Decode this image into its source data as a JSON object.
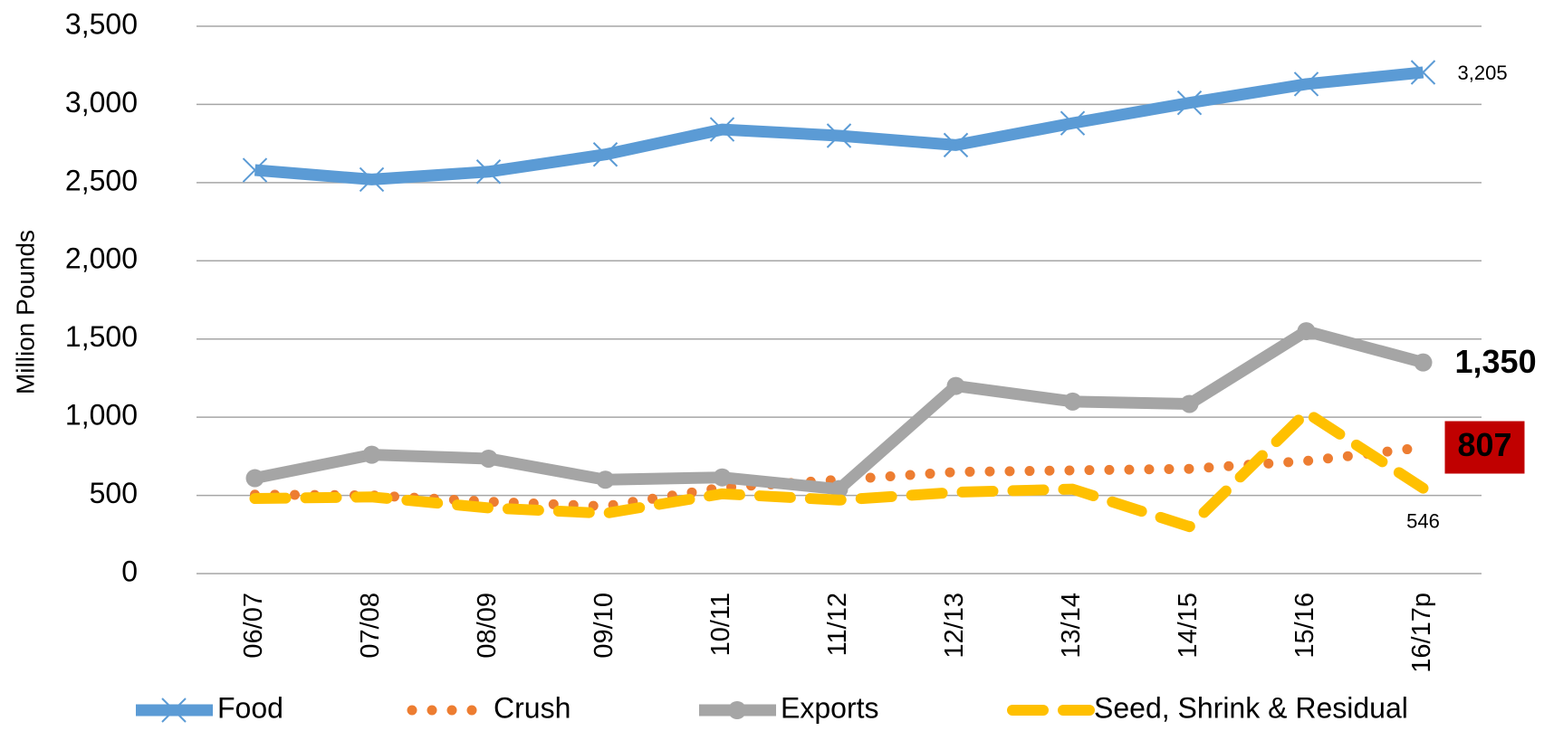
{
  "chart_data": {
    "type": "line",
    "y_axis_label": "Million Pounds",
    "categories": [
      "06/07",
      "07/08",
      "08/09",
      "09/10",
      "10/11",
      "11/12",
      "12/13",
      "13/14",
      "14/15",
      "15/16",
      "16/17p"
    ],
    "series": [
      {
        "name": "Food",
        "color": "#5b9bd5",
        "line_style": "solid",
        "marker": "x",
        "values": [
          2580,
          2520,
          2570,
          2680,
          2840,
          2800,
          2740,
          2880,
          3010,
          3130,
          3205
        ],
        "value_labels": [
          null,
          null,
          null,
          null,
          null,
          null,
          null,
          null,
          null,
          null,
          "3,205"
        ]
      },
      {
        "name": "Crush",
        "color": "#ed7d31",
        "line_style": "dotted",
        "marker": "none",
        "values": [
          505,
          500,
          460,
          430,
          550,
          600,
          650,
          660,
          670,
          720,
          807
        ],
        "value_labels": [
          null,
          null,
          null,
          null,
          null,
          null,
          null,
          null,
          null,
          null,
          "807"
        ]
      },
      {
        "name": "Exports",
        "color": "#a5a5a5",
        "line_style": "solid",
        "marker": "circle",
        "values": [
          610,
          760,
          735,
          600,
          615,
          540,
          1200,
          1100,
          1085,
          1550,
          1350
        ],
        "value_labels": [
          null,
          null,
          null,
          null,
          null,
          null,
          null,
          null,
          null,
          null,
          "1,350"
        ]
      },
      {
        "name": "Seed, Shrink & Residual",
        "color": "#ffc000",
        "line_style": "dashed",
        "marker": "none",
        "values": [
          480,
          490,
          420,
          385,
          510,
          470,
          520,
          540,
          300,
          1030,
          546
        ],
        "value_labels": [
          null,
          null,
          null,
          null,
          null,
          null,
          null,
          null,
          null,
          null,
          "546"
        ]
      }
    ],
    "ylim": [
      0,
      3500
    ],
    "yticks": [
      0,
      500,
      {
        "value": 1000,
        "label": "1,000"
      },
      {
        "value": 1500,
        "label": "1,500"
      },
      {
        "value": 2000,
        "label": "2,000"
      },
      {
        "value": 2500,
        "label": "2,500"
      },
      {
        "value": 3000,
        "label": "3,000"
      },
      {
        "value": 3500,
        "label": "3,500"
      }
    ],
    "grid": true,
    "legend": "bottom"
  }
}
